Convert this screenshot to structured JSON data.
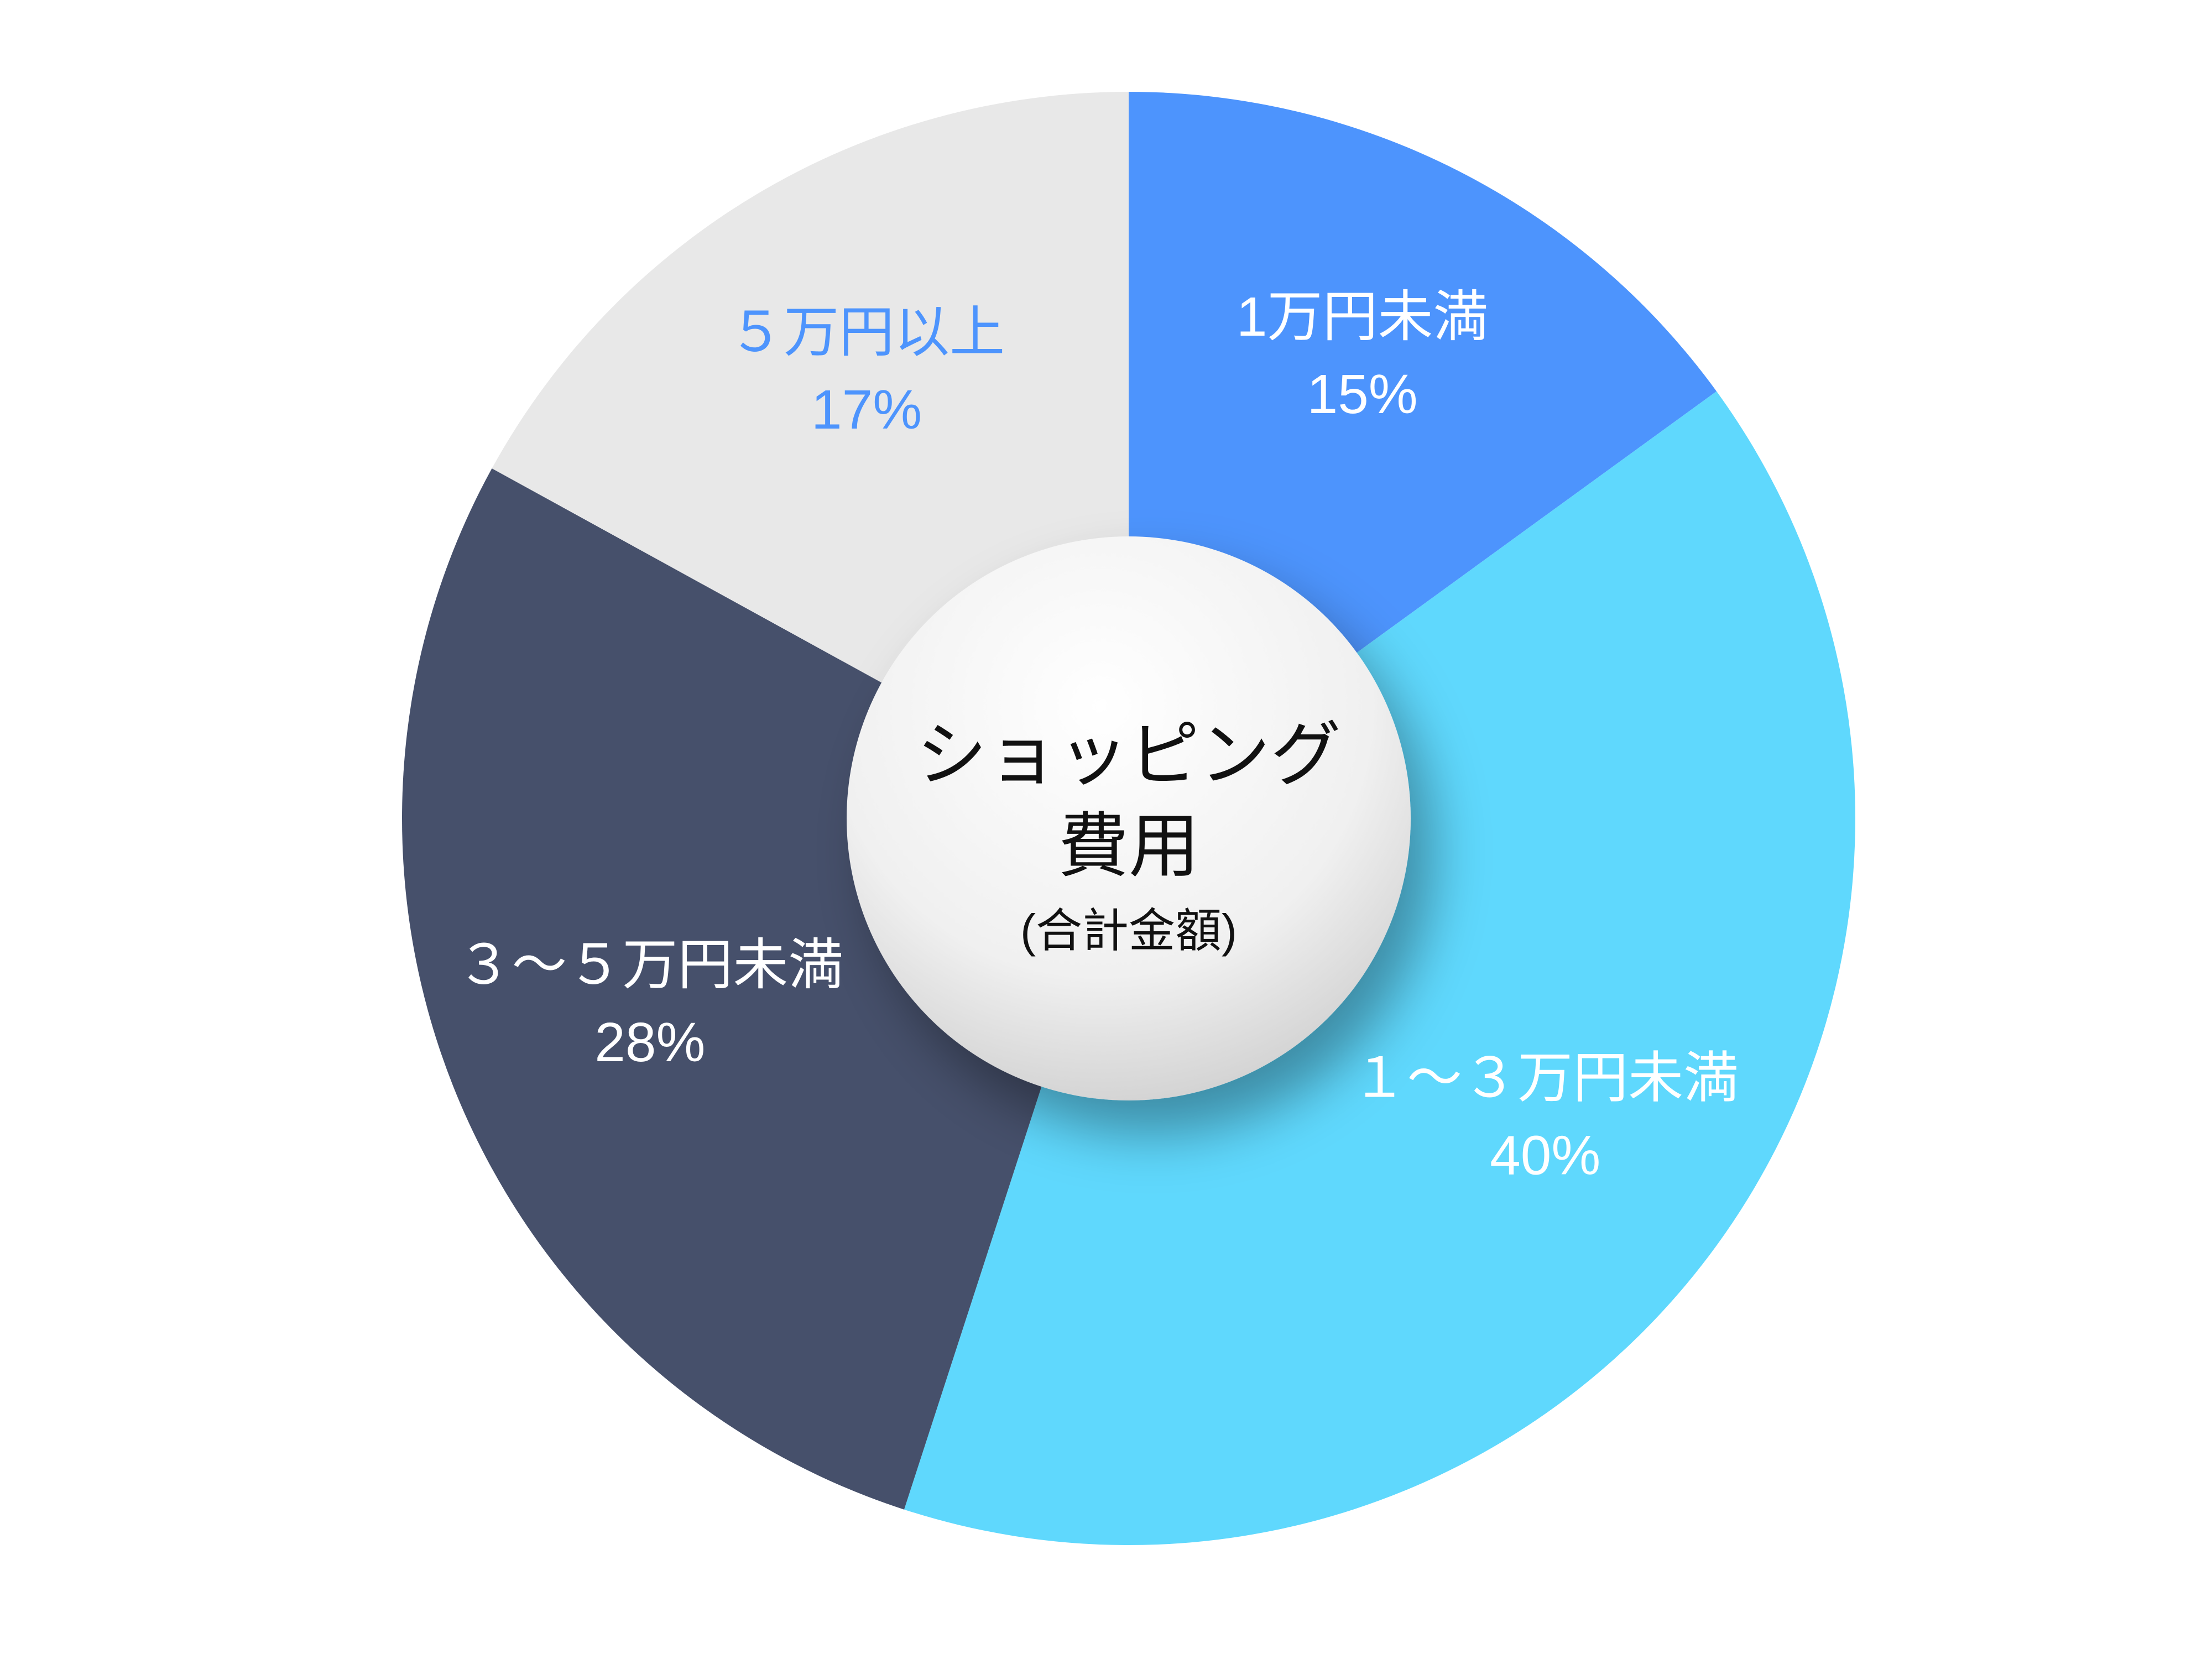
{
  "chart_data": {
    "type": "donut",
    "title_lines": [
      "ショッピング",
      "費用"
    ],
    "subtitle": "(合計金額)",
    "categories": [
      "1万円未満",
      "１～３万円未満",
      "３～５万円未満",
      "５万円以上"
    ],
    "values": [
      15,
      40,
      28,
      17
    ],
    "value_labels": [
      "15%",
      "40%",
      "28%",
      "17%"
    ],
    "colors": [
      "#4d94fd",
      "#5fd8fd",
      "#46506b",
      "#e8e8e8"
    ],
    "label_colors": [
      "#ffffff",
      "#ffffff",
      "#ffffff",
      "#4d94fd"
    ]
  }
}
